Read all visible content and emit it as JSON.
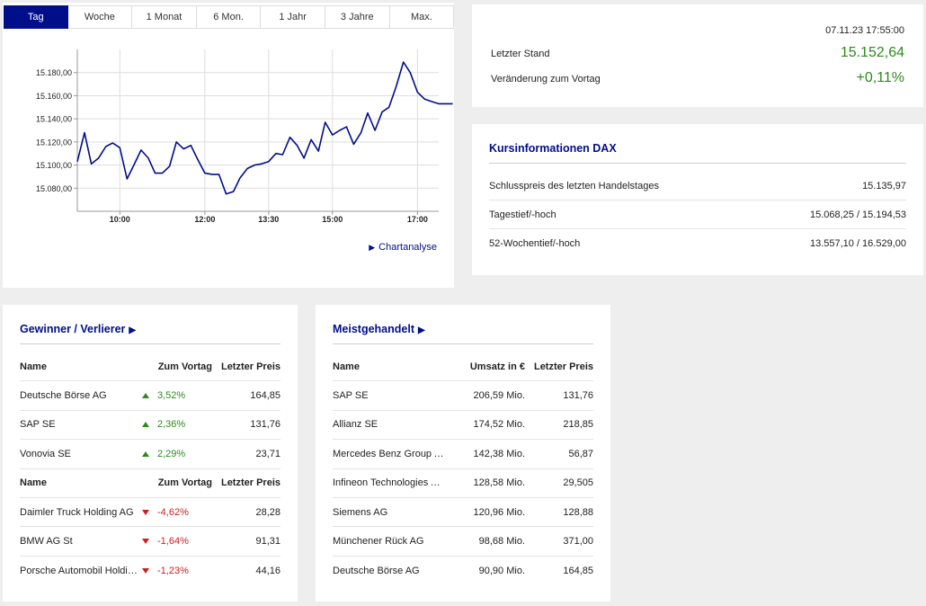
{
  "chart": {
    "tabs": [
      {
        "label": "Tag",
        "active": true
      },
      {
        "label": "Woche",
        "active": false
      },
      {
        "label": "1 Monat",
        "active": false
      },
      {
        "label": "6 Mon.",
        "active": false
      },
      {
        "label": "1 Jahr",
        "active": false
      },
      {
        "label": "3 Jahre",
        "active": false
      },
      {
        "label": "Max.",
        "active": false
      }
    ],
    "link_label": "Chartanalyse",
    "line_color": "#000e8a"
  },
  "chart_data": {
    "type": "line",
    "title": "",
    "xlabel": "",
    "ylabel": "",
    "x_ticks": [
      {
        "x": 10.0,
        "label": "10:00"
      },
      {
        "x": 12.0,
        "label": "12:00"
      },
      {
        "x": 13.5,
        "label": "13:30"
      },
      {
        "x": 15.0,
        "label": "15:00"
      },
      {
        "x": 17.0,
        "label": "17:00"
      }
    ],
    "y_ticks": [
      15080,
      15100,
      15120,
      15140,
      15160,
      15180
    ],
    "y_tick_labels": [
      "15.080,00",
      "15.100,00",
      "15.120,00",
      "15.140,00",
      "15.160,00",
      "15.180,00"
    ],
    "xlim": [
      9.0,
      17.5
    ],
    "ylim": [
      15060,
      15200
    ],
    "grid": "vertical",
    "series": [
      {
        "x": [
          9.0,
          9.17,
          9.33,
          9.5,
          9.67,
          9.83,
          10.0,
          10.17,
          10.33,
          10.5,
          10.67,
          10.83,
          11.0,
          11.17,
          11.33,
          11.5,
          11.67,
          11.83,
          12.0,
          12.17,
          12.33,
          12.5,
          12.67,
          12.83,
          13.0,
          13.17,
          13.33,
          13.5,
          13.67,
          13.83,
          14.0,
          14.17,
          14.33,
          14.5,
          14.67,
          14.83,
          15.0,
          15.17,
          15.33,
          15.5,
          15.67,
          15.83,
          16.0,
          16.17,
          16.33,
          16.5,
          16.67,
          16.83,
          17.0,
          17.17,
          17.33,
          17.5,
          17.67,
          17.83
        ],
        "y": [
          15103,
          15128,
          15101,
          15106,
          15116,
          15119,
          15115,
          15088,
          15100,
          15113,
          15106,
          15093,
          15093,
          15099,
          15120,
          15114,
          15117,
          15105,
          15093,
          15092,
          15092,
          15075,
          15077,
          15089,
          15097,
          15100,
          15101,
          15103,
          15110,
          15109,
          15124,
          15117,
          15106,
          15122,
          15112,
          15137,
          15126,
          15130,
          15133,
          15118,
          15128,
          15145,
          15130,
          15146,
          15150,
          15168,
          15189,
          15180,
          15163,
          15157,
          15155,
          15153,
          15153,
          15153
        ]
      }
    ]
  },
  "quote": {
    "date": "07.11.23 17:55:00",
    "last_label": "Letzter Stand",
    "last_value": "15.152,64",
    "change_label": "Veränderung zum Vortag",
    "change_value": "+0,11%",
    "positive_color": "#2f8a1e"
  },
  "info": {
    "title": "Kursinformationen DAX",
    "rows": [
      {
        "label": "Schlusspreis des letzten Handelstages",
        "value": "15.135,97"
      },
      {
        "label": "Tagestief/-hoch",
        "value": "15.068,25 / 15.194,53"
      },
      {
        "label": "52-Wochentief/-hoch",
        "value": "13.557,10 / 16.529,00"
      }
    ]
  },
  "gainers": {
    "title": "Gewinner / Verlierer",
    "header": {
      "name": "Name",
      "change": "Zum Vortag",
      "price": "Letzter Preis"
    },
    "winners": [
      {
        "name": "Deutsche Börse AG",
        "change": "3,52%",
        "price": "164,85"
      },
      {
        "name": "SAP SE",
        "change": "2,36%",
        "price": "131,76"
      },
      {
        "name": "Vonovia SE",
        "change": "2,29%",
        "price": "23,71"
      }
    ],
    "losers": [
      {
        "name": "Daimler Truck Holding AG",
        "change": "-4,62%",
        "price": "28,28"
      },
      {
        "name": "BMW AG St",
        "change": "-1,64%",
        "price": "91,31"
      },
      {
        "name": "Porsche Automobil Holding…",
        "change": "-1,23%",
        "price": "44,16"
      }
    ]
  },
  "most_active": {
    "title": "Meistgehandelt",
    "header": {
      "name": "Name",
      "volume": "Umsatz in €",
      "price": "Letzter Preis"
    },
    "rows": [
      {
        "name": "SAP SE",
        "volume": "206,59 Mio.",
        "price": "131,76"
      },
      {
        "name": "Allianz SE",
        "volume": "174,52 Mio.",
        "price": "218,85"
      },
      {
        "name": "Mercedes Benz Group AG …",
        "volume": "142,38 Mio.",
        "price": "56,87"
      },
      {
        "name": "Infineon Technologies AG",
        "volume": "128,58 Mio.",
        "price": "29,505"
      },
      {
        "name": "Siemens AG",
        "volume": "120,96 Mio.",
        "price": "128,88"
      },
      {
        "name": "Münchener Rück AG",
        "volume": "98,68 Mio.",
        "price": "371,00"
      },
      {
        "name": "Deutsche Börse AG",
        "volume": "90,90 Mio.",
        "price": "164,85"
      }
    ]
  }
}
